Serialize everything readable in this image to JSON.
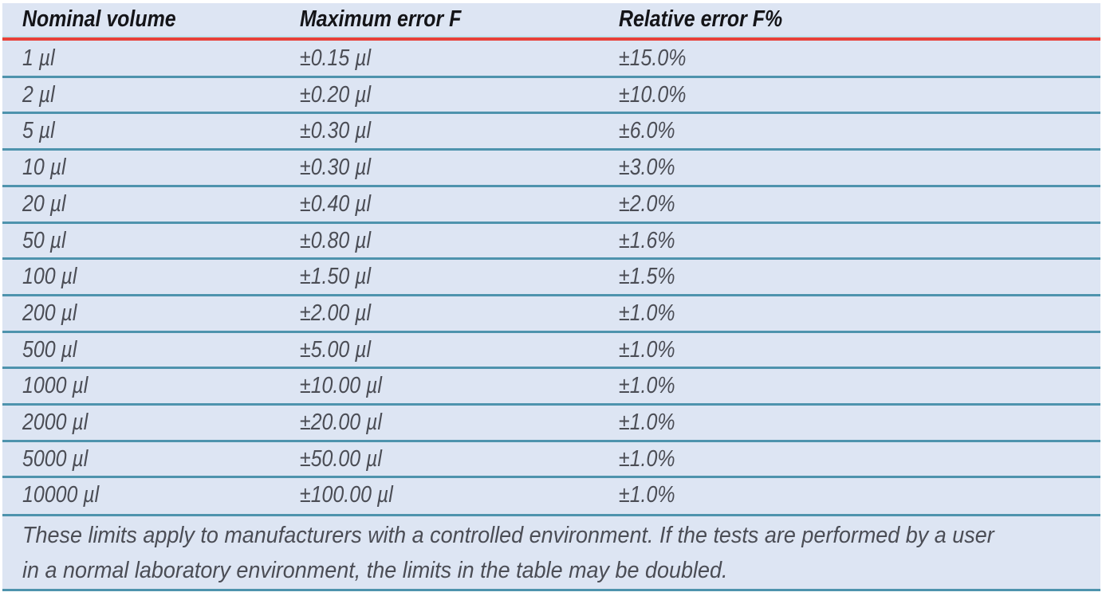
{
  "table": {
    "headers": [
      "Nominal volume",
      "Maximum error F",
      "Relative error F%"
    ],
    "rows": [
      [
        "1 µl",
        "±0.15 µl",
        "±15.0%"
      ],
      [
        "2 µl",
        "±0.20 µl",
        "±10.0%"
      ],
      [
        "5 µl",
        "±0.30 µl",
        "±6.0%"
      ],
      [
        "10 µl",
        "±0.30 µl",
        "±3.0%"
      ],
      [
        "20 µl",
        "±0.40 µl",
        "±2.0%"
      ],
      [
        "50 µl",
        "±0.80 µl",
        "±1.6%"
      ],
      [
        "100 µl",
        "±1.50 µl",
        "±1.5%"
      ],
      [
        "200 µl",
        "±2.00 µl",
        "±1.0%"
      ],
      [
        "500 µl",
        "±5.00 µl",
        "±1.0%"
      ],
      [
        "1000 µl",
        "±10.00 µl",
        "±1.0%"
      ],
      [
        "2000 µl",
        "±20.00 µl",
        "±1.0%"
      ],
      [
        "5000 µl",
        "±50.00 µl",
        "±1.0%"
      ],
      [
        "10000 µl",
        "±100.00 µl",
        "±1.0%"
      ]
    ],
    "footnote": {
      "line1": "These limits apply to manufacturers with a controlled environment. If the tests are performed by a user",
      "line2": "in a normal laboratory environment, the limits in the table may be doubled."
    }
  },
  "colors": {
    "background": "#dde5f3",
    "header_rule": "#e8413a",
    "row_rule": "#4e93ad",
    "header_text": "#141418",
    "body_text": "#4b4d55"
  }
}
